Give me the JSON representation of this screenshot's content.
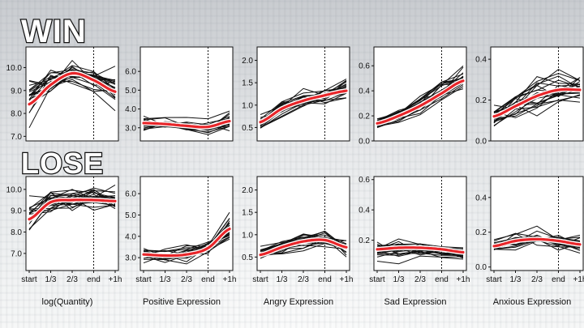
{
  "rows": [
    "WIN",
    "LOSE"
  ],
  "x_categories": [
    "start",
    "1/3",
    "2/3",
    "end",
    "+1h"
  ],
  "end_marker_category": "end",
  "colors": {
    "traces": "#111111",
    "mean": "#e8262a",
    "mean_halo": "#ffffff"
  },
  "chart_data": [
    {
      "type": "line",
      "row": "WIN",
      "xlabel": "log(Quantity)",
      "ylim": [
        6.8,
        10.9
      ],
      "yticks": [
        "7.0",
        "8.0",
        "9.0",
        "10.0"
      ],
      "ytick_values": [
        7,
        8,
        9,
        10
      ],
      "mean": [
        8.4,
        9.25,
        9.75,
        9.45,
        8.95
      ],
      "spread": [
        0.9,
        0.55,
        0.45,
        0.55,
        0.75
      ],
      "n_traces": 22
    },
    {
      "type": "line",
      "row": "WIN",
      "xlabel": "Positive Expression",
      "ylim": [
        2.3,
        7.3
      ],
      "yticks": [
        "3.0",
        "4.0",
        "5.0",
        "6.0"
      ],
      "ytick_values": [
        3,
        4,
        5,
        6
      ],
      "mean": [
        3.25,
        3.2,
        3.1,
        3.05,
        3.35
      ],
      "spread": [
        0.35,
        0.3,
        0.3,
        0.3,
        0.5
      ],
      "n_traces": 22
    },
    {
      "type": "line",
      "row": "WIN",
      "xlabel": "Angry Expression",
      "ylim": [
        0.2,
        2.3
      ],
      "yticks": [
        "0.5",
        "1.0",
        "1.5",
        "2.0"
      ],
      "ytick_values": [
        0.5,
        1.0,
        1.5,
        2.0
      ],
      "mean": [
        0.62,
        0.92,
        1.1,
        1.22,
        1.32
      ],
      "spread": [
        0.15,
        0.2,
        0.22,
        0.25,
        0.25
      ],
      "n_traces": 22
    },
    {
      "type": "line",
      "row": "WIN",
      "xlabel": "Sad Expression",
      "ylim": [
        0.0,
        0.75
      ],
      "yticks": [
        "0.0",
        "0.2",
        "0.4",
        "0.6"
      ],
      "ytick_values": [
        0.0,
        0.2,
        0.4,
        0.6
      ],
      "mean": [
        0.14,
        0.2,
        0.28,
        0.38,
        0.48
      ],
      "spread": [
        0.04,
        0.05,
        0.06,
        0.08,
        0.1
      ],
      "n_traces": 22
    },
    {
      "type": "line",
      "row": "WIN",
      "xlabel": "Anxious Expression",
      "ylim": [
        0.0,
        0.46
      ],
      "yticks": [
        "0.0",
        "0.2",
        "0.4"
      ],
      "ytick_values": [
        0.0,
        0.2,
        0.4
      ],
      "mean": [
        0.12,
        0.17,
        0.22,
        0.25,
        0.25
      ],
      "spread": [
        0.05,
        0.06,
        0.06,
        0.06,
        0.07
      ],
      "n_traces": 22
    },
    {
      "type": "line",
      "row": "LOSE",
      "xlabel": "",
      "ylim": [
        6.2,
        10.6
      ],
      "yticks": [
        "7.0",
        "8.0",
        "9.0",
        "10.0"
      ],
      "ytick_values": [
        7,
        8,
        9,
        10
      ],
      "mean": [
        8.6,
        9.4,
        9.5,
        9.5,
        9.45
      ],
      "spread": [
        0.9,
        0.6,
        0.55,
        0.55,
        0.55
      ],
      "n_traces": 22
    },
    {
      "type": "line",
      "row": "LOSE",
      "xlabel": "",
      "ylim": [
        2.4,
        6.8
      ],
      "yticks": [
        "3.0",
        "4.0",
        "5.0",
        "6.0"
      ],
      "ytick_values": [
        3,
        4,
        5,
        6
      ],
      "mean": [
        3.15,
        3.1,
        3.15,
        3.45,
        4.35
      ],
      "spread": [
        0.3,
        0.3,
        0.3,
        0.4,
        0.6
      ],
      "n_traces": 22
    },
    {
      "type": "line",
      "row": "LOSE",
      "xlabel": "",
      "ylim": [
        0.2,
        2.3
      ],
      "yticks": [
        "0.5",
        "1.0",
        "1.5",
        "2.0"
      ],
      "ytick_values": [
        0.5,
        1.0,
        1.5,
        2.0
      ],
      "mean": [
        0.55,
        0.72,
        0.85,
        0.88,
        0.72
      ],
      "spread": [
        0.14,
        0.16,
        0.18,
        0.2,
        0.18
      ],
      "n_traces": 22
    },
    {
      "type": "line",
      "row": "LOSE",
      "xlabel": "",
      "ylim": [
        0.0,
        0.62
      ],
      "yticks": [
        "0.2",
        "0.4",
        "0.6"
      ],
      "ytick_values": [
        0.2,
        0.4,
        0.6
      ],
      "mean": [
        0.14,
        0.15,
        0.15,
        0.14,
        0.12
      ],
      "spread": [
        0.05,
        0.05,
        0.05,
        0.04,
        0.04
      ],
      "n_traces": 22
    },
    {
      "type": "line",
      "row": "LOSE",
      "xlabel": "",
      "ylim": [
        -0.02,
        0.52
      ],
      "yticks": [
        "0.0",
        "0.2",
        "0.4"
      ],
      "ytick_values": [
        0.0,
        0.2,
        0.4
      ],
      "mean": [
        0.12,
        0.15,
        0.16,
        0.15,
        0.13
      ],
      "spread": [
        0.04,
        0.04,
        0.04,
        0.04,
        0.04
      ],
      "n_traces": 22
    }
  ],
  "bottom_labels": [
    "log(Quantity)",
    "Positive Expression",
    "Angry Expression",
    "Sad Expression",
    "Anxious Expression"
  ]
}
